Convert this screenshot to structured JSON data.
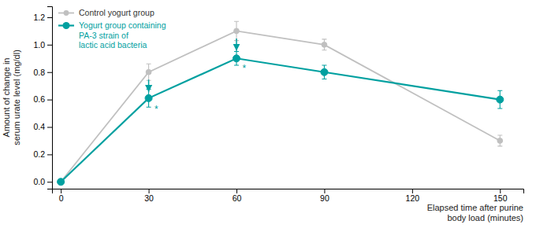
{
  "chart_data": {
    "type": "line",
    "xlabel": "Elapsed time after purine\nbody load (minutes)",
    "ylabel": "Amount of change in\nserum urate level (mg/dl)",
    "x": [
      0,
      30,
      60,
      90,
      150
    ],
    "series": [
      {
        "name": "Control yogurt group",
        "color": "#c0c0c0",
        "marker": "circle",
        "values": [
          0.0,
          0.8,
          1.1,
          1.0,
          0.3
        ],
        "errors": [
          0.0,
          0.06,
          0.07,
          0.04,
          0.04
        ]
      },
      {
        "name": "Yogurt group containing\nPA-3 strain of\nlactic acid bacteria",
        "color": "#00a0a0",
        "marker": "circle",
        "values": [
          0.0,
          0.61,
          0.9,
          0.8,
          0.6
        ],
        "errors": [
          0.0,
          0.065,
          0.05,
          0.05,
          0.065
        ]
      }
    ],
    "xlim": [
      -3,
      158
    ],
    "ylim": [
      -0.05,
      1.28
    ],
    "xticks": [
      0,
      30,
      60,
      90,
      120,
      150
    ],
    "yticks": [
      {
        "value": 0,
        "label": "0.0"
      },
      0.2,
      0.4,
      0.6,
      0.8,
      {
        "value": 1,
        "label": "1.0"
      },
      1.2
    ],
    "grid": false,
    "legend": "upper left",
    "arrows": [
      {
        "x": 30,
        "from": 0.745,
        "to": 0.655,
        "color": "#00a0a0"
      },
      {
        "x": 60,
        "from": 1.045,
        "to": 0.955,
        "color": "#00a0a0"
      }
    ],
    "annotations": [
      {
        "text": "*",
        "x": 32,
        "y": 0.555,
        "color": "#00a0a0"
      },
      {
        "text": "*",
        "x": 62,
        "y": 0.852,
        "color": "#00a0a0"
      }
    ]
  }
}
